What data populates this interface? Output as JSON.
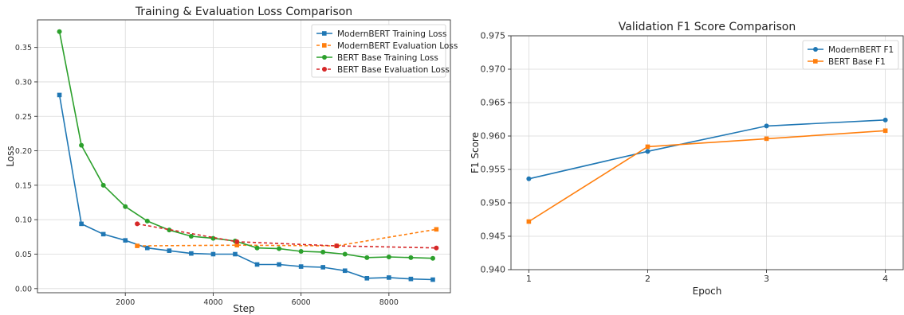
{
  "chart_data": [
    {
      "type": "line",
      "title": "Training & Evaluation Loss Comparison",
      "xlabel": "Step",
      "ylabel": "Loss",
      "xlim": [
        0,
        9400
      ],
      "ylim": [
        -0.006,
        0.39
      ],
      "xticks": [
        2000,
        4000,
        6000,
        8000
      ],
      "xtick_labels": [
        "2000",
        "4000",
        "6000",
        "8000"
      ],
      "yticks": [
        0.0,
        0.05,
        0.1,
        0.15,
        0.2,
        0.25,
        0.3,
        0.35
      ],
      "ytick_labels": [
        "0.00",
        "0.05",
        "0.10",
        "0.15",
        "0.20",
        "0.25",
        "0.30",
        "0.35"
      ],
      "grid": true,
      "legend": "top-right",
      "series": [
        {
          "name": "ModernBERT Training Loss",
          "color": "#1f77b4",
          "style": "solid",
          "marker": "square",
          "x": [
            500,
            1000,
            1500,
            2000,
            2500,
            3000,
            3500,
            4000,
            4500,
            5000,
            5500,
            6000,
            6500,
            7000,
            7500,
            8000,
            8500,
            9000
          ],
          "y": [
            0.281,
            0.094,
            0.079,
            0.07,
            0.059,
            0.055,
            0.051,
            0.05,
            0.05,
            0.035,
            0.035,
            0.032,
            0.031,
            0.026,
            0.015,
            0.016,
            0.014,
            0.013
          ]
        },
        {
          "name": "ModernBERT Evaluation Loss",
          "color": "#ff7f0e",
          "style": "dashed",
          "marker": "square",
          "x": [
            2270,
            4540,
            6810,
            9080
          ],
          "y": [
            0.062,
            0.063,
            0.062,
            0.086
          ]
        },
        {
          "name": "BERT Base Training Loss",
          "color": "#2ca02c",
          "style": "solid",
          "marker": "circle",
          "x": [
            500,
            1000,
            1500,
            2000,
            2500,
            3000,
            3500,
            4000,
            4500,
            5000,
            5500,
            6000,
            6500,
            7000,
            7500,
            8000,
            8500,
            9000
          ],
          "y": [
            0.373,
            0.208,
            0.15,
            0.119,
            0.098,
            0.085,
            0.076,
            0.073,
            0.069,
            0.059,
            0.058,
            0.054,
            0.053,
            0.05,
            0.045,
            0.046,
            0.045,
            0.044
          ]
        },
        {
          "name": "BERT Base Evaluation Loss",
          "color": "#d62728",
          "style": "dashed",
          "marker": "circle",
          "x": [
            2270,
            4540,
            6810,
            9080
          ],
          "y": [
            0.094,
            0.068,
            0.062,
            0.059
          ]
        }
      ]
    },
    {
      "type": "line",
      "title": "Validation F1 Score Comparison",
      "xlabel": "Epoch",
      "ylabel": "F1 Score",
      "xlim": [
        0.85,
        4.15
      ],
      "ylim": [
        0.94,
        0.975
      ],
      "xticks": [
        1,
        2,
        3,
        4
      ],
      "xtick_labels": [
        "1",
        "2",
        "3",
        "4"
      ],
      "yticks": [
        0.94,
        0.945,
        0.95,
        0.955,
        0.96,
        0.965,
        0.97,
        0.975
      ],
      "ytick_labels": [
        "0.940",
        "0.945",
        "0.950",
        "0.955",
        "0.960",
        "0.965",
        "0.970",
        "0.975"
      ],
      "grid": true,
      "legend": "top-right",
      "series": [
        {
          "name": "ModernBERT F1",
          "color": "#1f77b4",
          "style": "solid",
          "marker": "circle",
          "x": [
            1,
            2,
            3,
            4
          ],
          "y": [
            0.9536,
            0.9577,
            0.9615,
            0.9624
          ]
        },
        {
          "name": "BERT Base F1",
          "color": "#ff7f0e",
          "style": "solid",
          "marker": "square",
          "x": [
            1,
            2,
            3,
            4
          ],
          "y": [
            0.9472,
            0.9584,
            0.9596,
            0.9608
          ]
        }
      ]
    }
  ]
}
